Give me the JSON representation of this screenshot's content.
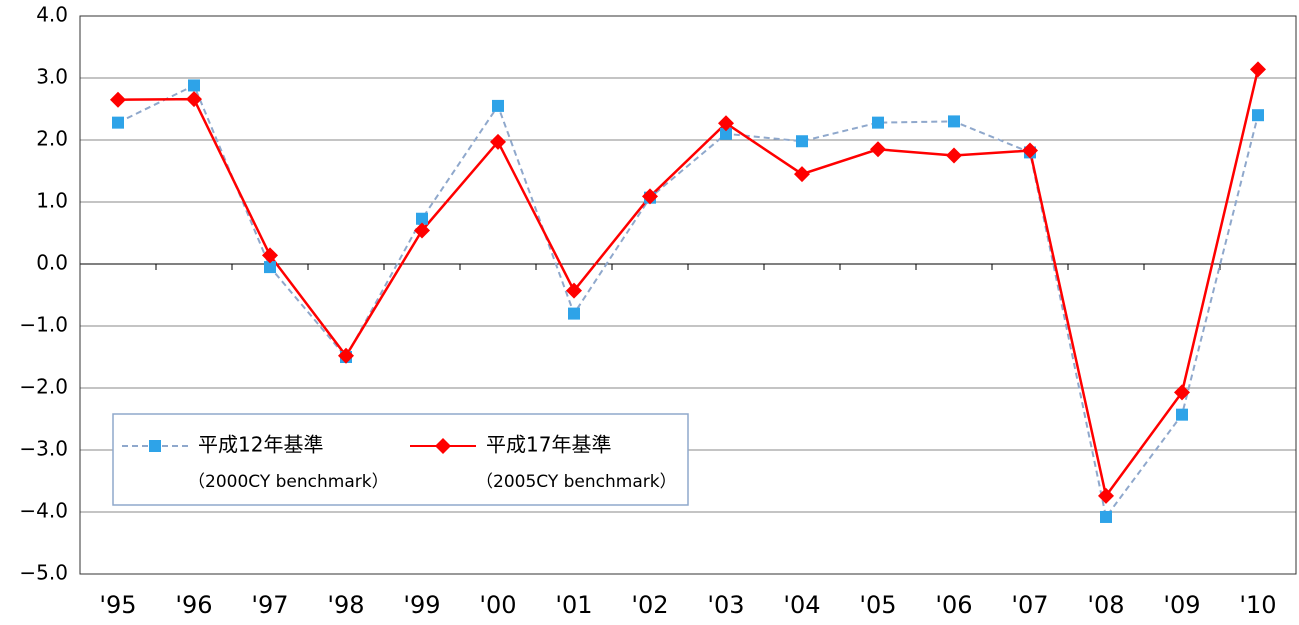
{
  "chart_data": {
    "type": "line",
    "categories": [
      "'95",
      "'96",
      "'97",
      "'98",
      "'99",
      "'00",
      "'01",
      "'02",
      "'03",
      "'04",
      "'05",
      "'06",
      "'07",
      "'08",
      "'09",
      "'10"
    ],
    "series": [
      {
        "name": "平成12年基準",
        "name_en": "（2000CY benchmark）",
        "color": "#8fa8cc",
        "marker_color": "#2ea3e8",
        "marker": "square",
        "dashed": true,
        "values": [
          2.28,
          2.88,
          -0.05,
          -1.5,
          0.73,
          2.55,
          -0.8,
          1.07,
          2.1,
          1.98,
          2.28,
          2.3,
          1.8,
          -4.08,
          -2.43,
          2.4
        ]
      },
      {
        "name": "平成17年基準",
        "name_en": "（2005CY benchmark）",
        "color": "#ff0000",
        "marker_color": "#ff0000",
        "marker": "diamond",
        "dashed": false,
        "values": [
          2.65,
          2.66,
          0.14,
          -1.48,
          0.54,
          1.97,
          -0.43,
          1.09,
          2.27,
          1.45,
          1.85,
          1.75,
          1.83,
          -3.74,
          -2.07,
          3.14
        ]
      }
    ],
    "ylim": [
      -5,
      4
    ],
    "yticks": [
      {
        "value": -5,
        "label": "−5.0"
      },
      {
        "value": -4,
        "label": "−4.0"
      },
      {
        "value": -3,
        "label": "−3.0"
      },
      {
        "value": -2,
        "label": "−2.0"
      },
      {
        "value": -1,
        "label": "−1.0"
      },
      {
        "value": 0,
        "label": "0.0"
      },
      {
        "value": 1,
        "label": "1.0"
      },
      {
        "value": 2,
        "label": "2.0"
      },
      {
        "value": 3,
        "label": "3.0"
      },
      {
        "value": 4,
        "label": "4.0"
      }
    ],
    "grid": true
  }
}
